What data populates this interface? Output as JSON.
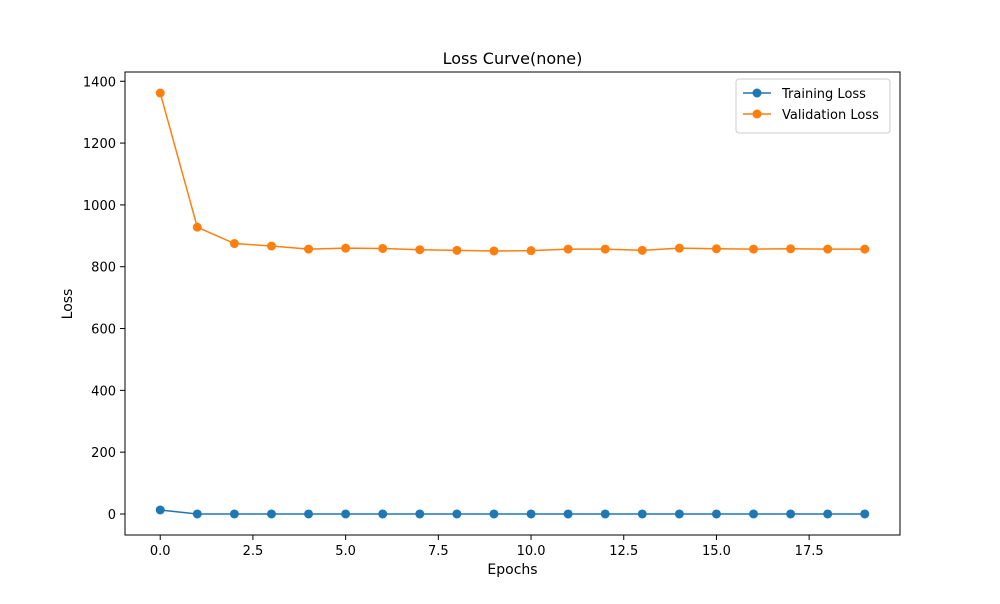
{
  "chart_data": {
    "type": "line",
    "title": "Loss Curve(none)",
    "xlabel": "Epochs",
    "ylabel": "Loss",
    "xlim": [
      -0.95,
      19.95
    ],
    "ylim": [
      -68,
      1430
    ],
    "x_ticks": [
      0.0,
      2.5,
      5.0,
      7.5,
      10.0,
      12.5,
      15.0,
      17.5
    ],
    "x_tick_labels": [
      "0.0",
      "2.5",
      "5.0",
      "7.5",
      "10.0",
      "12.5",
      "15.0",
      "17.5"
    ],
    "y_ticks": [
      0,
      200,
      400,
      600,
      800,
      1000,
      1200,
      1400
    ],
    "y_tick_labels": [
      "0",
      "200",
      "400",
      "600",
      "800",
      "1000",
      "1200",
      "1400"
    ],
    "grid": false,
    "legend_position": "top-right",
    "x": [
      0,
      1,
      2,
      3,
      4,
      5,
      6,
      7,
      8,
      9,
      10,
      11,
      12,
      13,
      14,
      15,
      16,
      17,
      18,
      19
    ],
    "series": [
      {
        "name": "Training Loss",
        "color": "#1f77b4",
        "marker": "circle",
        "values": [
          13,
          0,
          0,
          0,
          0,
          0,
          0,
          0,
          0,
          0,
          0,
          0,
          0,
          0,
          0,
          0,
          0,
          0,
          0,
          0
        ]
      },
      {
        "name": "Validation Loss",
        "color": "#ff7f0e",
        "marker": "circle",
        "values": [
          1362,
          928,
          875,
          867,
          857,
          860,
          859,
          855,
          853,
          851,
          852,
          857,
          857,
          853,
          860,
          858,
          857,
          858,
          857,
          857
        ]
      }
    ]
  }
}
